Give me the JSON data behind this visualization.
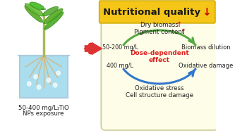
{
  "bg_color": "#ffffff",
  "title_text": "Nutritional quality",
  "title_arrow": "↓",
  "title_bg": "#f5c518",
  "title_color": "#1a1a1a",
  "title_arrow_color": "#cc0000",
  "left_label_line1": "50-400 mg/L TiO",
  "left_label_sub": "2",
  "left_label_line2": "NPs exposure",
  "big_arrow_color": "#dd3333",
  "panel_bg": "#fefde8",
  "panel_edge": "#ccccaa",
  "top_label_line1": "Dry biomass",
  "top_label_up1": "↑",
  "top_label_line2": "Pigment content",
  "top_label_up2": "↑",
  "top_label_arrow_color": "#dd2222",
  "left_dose1": "50-200 mg/L",
  "left_dose2": "400 mg/L",
  "right_label1": "Biomass dilution",
  "right_label2": "Oxidative damage",
  "bottom_label_line1": "Oxidative stress",
  "bottom_label_line2": "Cell structure damage",
  "center_text_line1": "Dose-dependent",
  "center_text_line2": "effect",
  "center_text_color": "#dd2222",
  "arc_green_color": "#55aa44",
  "arc_blue_color": "#3377cc",
  "plant_stem_color": "#ddcc88",
  "plant_leaf_color": "#44aa22",
  "plant_root_color": "#ccbb88",
  "water_color": "#aaddee",
  "beaker_color": "#aaccdd",
  "bubble_color": "#ffffff"
}
